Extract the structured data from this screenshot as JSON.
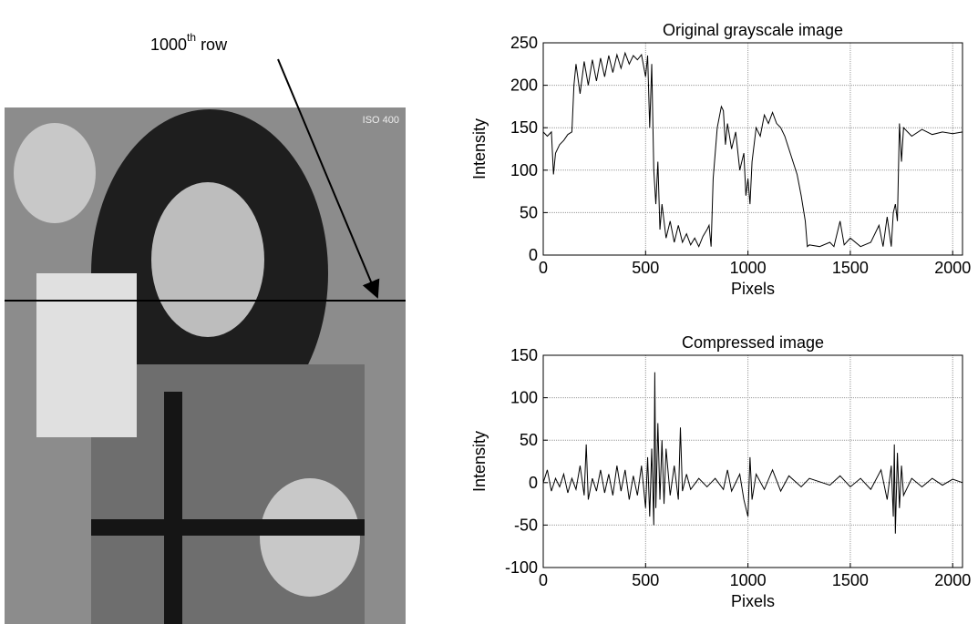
{
  "image": {
    "label": "ISO 400",
    "annotation": {
      "number": "1000",
      "superscript": "th",
      "suffix": "row"
    }
  },
  "chart_data": [
    {
      "type": "line",
      "title": "Original grayscale image",
      "x_label": "Pixels",
      "y_label": "Intensity",
      "color": "#000000",
      "grid": true,
      "xlim": [
        0,
        2048
      ],
      "ylim": [
        0,
        250
      ],
      "xticks": [
        0,
        500,
        1000,
        1500,
        2000
      ],
      "yticks": [
        0,
        50,
        100,
        150,
        200,
        250
      ],
      "x": [
        0,
        20,
        40,
        50,
        60,
        80,
        100,
        120,
        140,
        150,
        160,
        180,
        200,
        220,
        240,
        260,
        280,
        300,
        320,
        340,
        360,
        380,
        400,
        420,
        440,
        460,
        480,
        500,
        510,
        520,
        530,
        540,
        550,
        560,
        570,
        580,
        600,
        620,
        640,
        660,
        680,
        700,
        720,
        740,
        760,
        780,
        800,
        810,
        820,
        830,
        850,
        870,
        880,
        890,
        900,
        920,
        940,
        960,
        980,
        990,
        1000,
        1010,
        1020,
        1040,
        1060,
        1080,
        1100,
        1120,
        1140,
        1160,
        1180,
        1200,
        1220,
        1240,
        1260,
        1280,
        1290,
        1300,
        1350,
        1400,
        1420,
        1450,
        1470,
        1500,
        1550,
        1600,
        1640,
        1660,
        1680,
        1700,
        1710,
        1720,
        1730,
        1740,
        1750,
        1760,
        1780,
        1800,
        1850,
        1900,
        1950,
        2000,
        2048
      ],
      "values": [
        145,
        140,
        145,
        95,
        120,
        130,
        135,
        142,
        145,
        200,
        225,
        190,
        228,
        200,
        230,
        205,
        232,
        210,
        235,
        215,
        236,
        220,
        238,
        225,
        235,
        230,
        236,
        210,
        235,
        150,
        225,
        100,
        60,
        110,
        30,
        60,
        20,
        40,
        15,
        35,
        15,
        25,
        12,
        20,
        10,
        22,
        30,
        35,
        10,
        90,
        150,
        175,
        170,
        130,
        155,
        125,
        145,
        100,
        120,
        70,
        90,
        60,
        110,
        150,
        140,
        165,
        155,
        168,
        155,
        150,
        140,
        125,
        110,
        95,
        70,
        40,
        10,
        12,
        10,
        15,
        10,
        40,
        12,
        20,
        10,
        15,
        35,
        10,
        45,
        10,
        50,
        60,
        40,
        155,
        110,
        150,
        145,
        140,
        148,
        142,
        145,
        143,
        145
      ]
    },
    {
      "type": "line",
      "title": "Compressed image",
      "x_label": "Pixels",
      "y_label": "Intensity",
      "color": "#000000",
      "grid": true,
      "xlim": [
        0,
        2048
      ],
      "ylim": [
        -100,
        150
      ],
      "xticks": [
        0,
        500,
        1000,
        1500,
        2000
      ],
      "yticks": [
        -100,
        -50,
        0,
        50,
        100,
        150
      ],
      "x": [
        0,
        20,
        40,
        60,
        80,
        100,
        120,
        140,
        160,
        180,
        200,
        210,
        220,
        240,
        260,
        280,
        300,
        320,
        340,
        360,
        380,
        400,
        420,
        440,
        460,
        480,
        500,
        510,
        520,
        530,
        540,
        545,
        550,
        560,
        570,
        580,
        590,
        600,
        620,
        640,
        660,
        670,
        680,
        700,
        720,
        760,
        800,
        840,
        880,
        900,
        920,
        960,
        980,
        1000,
        1010,
        1020,
        1040,
        1080,
        1120,
        1160,
        1200,
        1260,
        1300,
        1400,
        1450,
        1500,
        1550,
        1600,
        1650,
        1680,
        1700,
        1710,
        1715,
        1720,
        1730,
        1740,
        1750,
        1760,
        1800,
        1850,
        1900,
        1950,
        2000,
        2048
      ],
      "values": [
        0,
        15,
        -10,
        5,
        -5,
        10,
        -12,
        5,
        -8,
        20,
        -15,
        45,
        -20,
        5,
        -10,
        15,
        -12,
        10,
        -15,
        20,
        -10,
        15,
        -20,
        8,
        -15,
        20,
        -30,
        30,
        -40,
        40,
        -50,
        130,
        -30,
        70,
        -20,
        50,
        -25,
        40,
        -15,
        20,
        -20,
        65,
        -10,
        10,
        -8,
        5,
        -5,
        5,
        -8,
        15,
        -10,
        10,
        -20,
        -40,
        30,
        -20,
        10,
        -8,
        15,
        -10,
        8,
        -5,
        5,
        -3,
        8,
        -5,
        5,
        -8,
        15,
        -20,
        20,
        -40,
        45,
        -60,
        35,
        -30,
        20,
        -15,
        5,
        -5,
        5,
        -3,
        4,
        0
      ]
    }
  ]
}
